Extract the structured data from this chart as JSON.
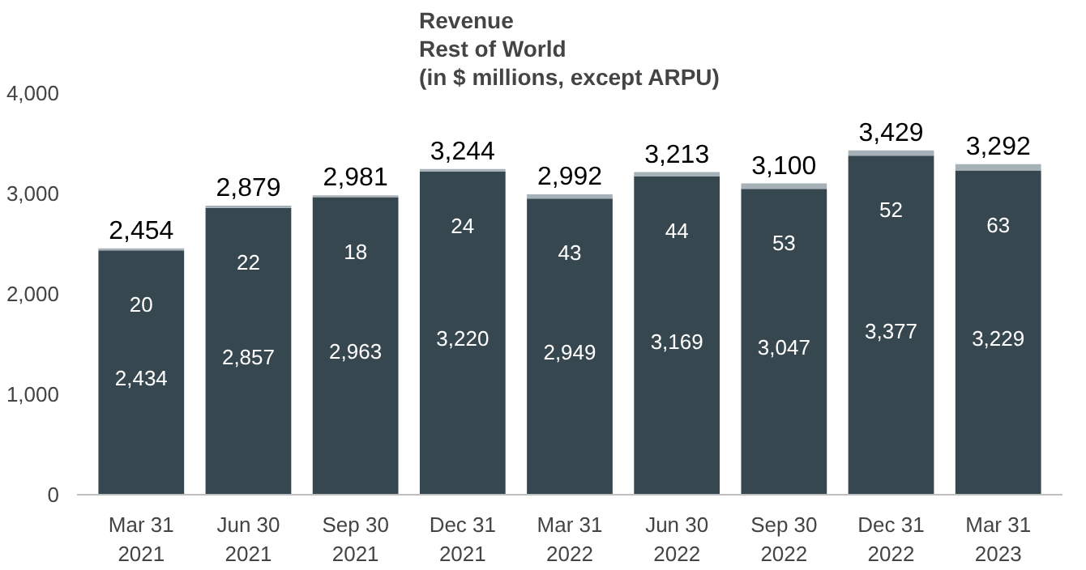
{
  "chart_data": {
    "type": "bar",
    "title": "Revenue\nRest of World\n(in $ millions, except ARPU)",
    "stacked": true,
    "categories": [
      "Mar 31\n2021",
      "Jun 30\n2021",
      "Sep 30\n2021",
      "Dec 31\n2021",
      "Mar 31\n2022",
      "Jun 30\n2022",
      "Sep 30\n2022",
      "Dec 31\n2022",
      "Mar 31\n2023"
    ],
    "series": [
      {
        "color": "#36474f",
        "values": [
          2434,
          2857,
          2963,
          3220,
          2949,
          3169,
          3047,
          3377,
          3229
        ],
        "value_labels": [
          "2,434",
          "2,857",
          "2,963",
          "3,220",
          "2,949",
          "3,169",
          "3,047",
          "3,377",
          "3,229"
        ]
      },
      {
        "color": "#a7b1b8",
        "values": [
          20,
          22,
          18,
          24,
          43,
          44,
          53,
          52,
          63
        ],
        "value_labels": [
          "20",
          "22",
          "18",
          "24",
          "43",
          "44",
          "53",
          "52",
          "63"
        ]
      }
    ],
    "totals": [
      "2,454",
      "2,879",
      "2,981",
      "3,244",
      "2,992",
      "3,213",
      "3,100",
      "3,429",
      "3,292"
    ],
    "ylim": [
      0,
      4000
    ],
    "yticks": [
      {
        "value": 0,
        "label": "0"
      },
      {
        "value": 1000,
        "label": "1,000"
      },
      {
        "value": 2000,
        "label": "2,000"
      },
      {
        "value": 3000,
        "label": "3,000"
      },
      {
        "value": 4000,
        "label": "4,000"
      }
    ],
    "grid": false
  }
}
